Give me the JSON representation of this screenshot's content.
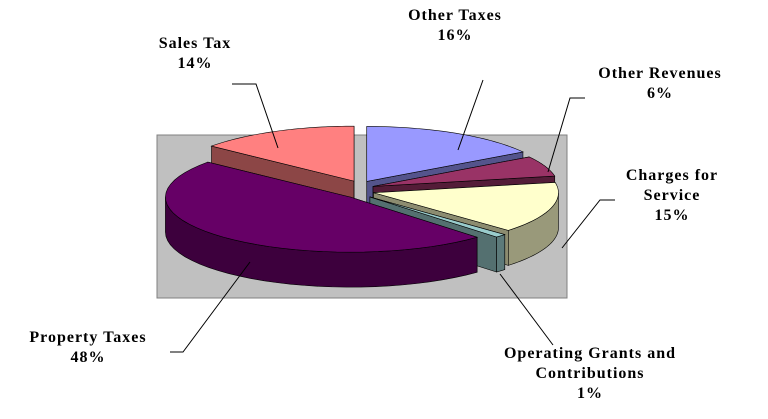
{
  "chart_data": {
    "type": "pie",
    "categories": [
      "Other Taxes",
      "Other Revenues",
      "Charges for Service",
      "Operating Grants and Contributions",
      "Property Taxes",
      "Sales Tax"
    ],
    "values": [
      16,
      6,
      15,
      1,
      48,
      14
    ],
    "value_labels": [
      "16%",
      "6%",
      "15%",
      "1%",
      "48%",
      "14%"
    ],
    "colors": [
      "#9999ff",
      "#993366",
      "#ffffcc",
      "#99cccc",
      "#660066",
      "#ff8080"
    ]
  }
}
